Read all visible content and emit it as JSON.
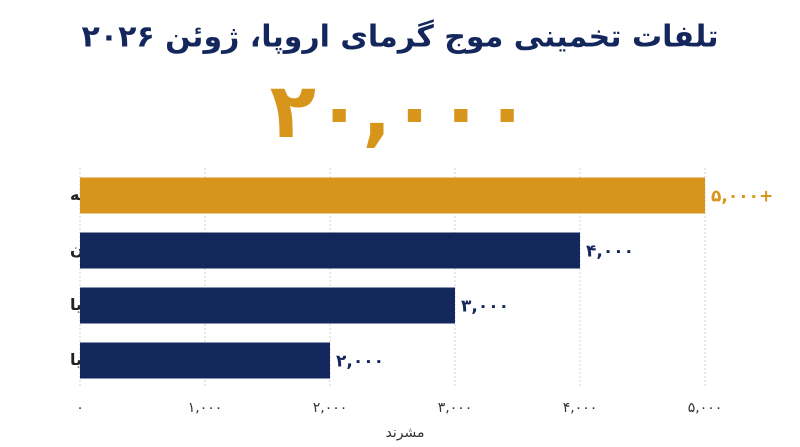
{
  "chart_data": {
    "type": "barh",
    "title": "تلفات تخمینی موج گرمای اروپا، ژوئن ۲۰۲۶",
    "annotation": "۲۰,۰۰۰",
    "categories": [
      "فرانسه",
      "آلمان",
      "ایتالیا",
      "اسپانیا"
    ],
    "values": [
      5000,
      4000,
      3000,
      2000
    ],
    "value_labels": [
      "۵,۰۰۰+",
      "۴,۰۰۰",
      "۳,۰۰۰",
      "۲,۰۰۰"
    ],
    "colors": [
      "#d8951b",
      "#14275c",
      "#14275c",
      "#14275c"
    ],
    "xlim": [
      0,
      5000
    ],
    "xticks": [
      {
        "value": 0,
        "label": "۰"
      },
      {
        "value": 1000,
        "label": "۱,۰۰۰"
      },
      {
        "value": 2000,
        "label": "۲,۰۰۰"
      },
      {
        "value": 3000,
        "label": "۳,۰۰۰"
      },
      {
        "value": 4000,
        "label": "۴,۰۰۰"
      },
      {
        "value": 5000,
        "label": "۵,۰۰۰"
      }
    ],
    "xlabel": "مشرند",
    "grid": true
  }
}
